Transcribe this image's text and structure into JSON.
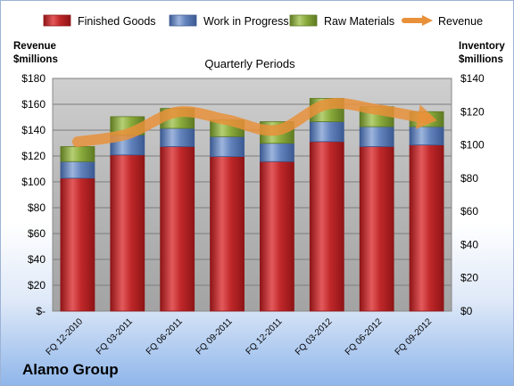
{
  "company": "Alamo Group",
  "chart_data": {
    "type": "bar",
    "stacked": true,
    "title": "Quarterly Periods",
    "y_left_label": [
      "Revenue",
      "$millions"
    ],
    "y_right_label": [
      "Inventory",
      "$millions"
    ],
    "y_left_ticks": [
      "$-",
      "$20",
      "$40",
      "$60",
      "$80",
      "$100",
      "$120",
      "$140",
      "$160",
      "$180"
    ],
    "y_right_ticks": [
      "$0",
      "$20",
      "$40",
      "$60",
      "$80",
      "$100",
      "$120",
      "$140"
    ],
    "y_left_range": [
      0,
      180
    ],
    "y_right_range": [
      0,
      140
    ],
    "categories": [
      "FQ 12-2010",
      "FQ 03-2011",
      "FQ 06-2011",
      "FQ 09-2011",
      "FQ 12-2011",
      "FQ 03-2012",
      "FQ 06-2012",
      "FQ 09-2012"
    ],
    "series": [
      {
        "name": "Finished Goods",
        "axis": "right",
        "color": "#c0282a",
        "values": [
          80,
          94,
          99,
          93,
          90,
          102,
          99,
          100
        ]
      },
      {
        "name": "Work in Progress",
        "axis": "right",
        "color": "#5a7bb3",
        "values": [
          10,
          12,
          11,
          12,
          11,
          12,
          12,
          11
        ]
      },
      {
        "name": "Raw Materials",
        "axis": "right",
        "color": "#7c9e34",
        "values": [
          9,
          11,
          12,
          10,
          13,
          14,
          12,
          9
        ]
      },
      {
        "name": "Revenue",
        "axis": "left",
        "type": "line",
        "color": "#e8913a",
        "values": [
          131,
          137,
          154,
          148,
          140,
          160,
          156,
          149
        ]
      }
    ],
    "legend_position": "top",
    "grid": true
  }
}
